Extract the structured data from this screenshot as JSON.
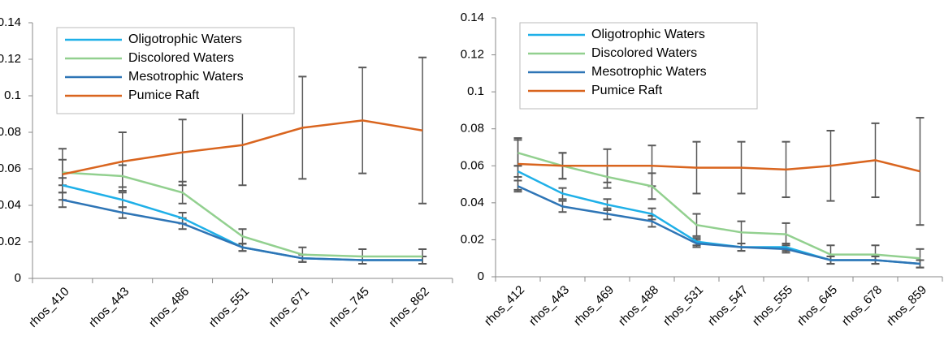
{
  "chart_data": [
    {
      "type": "line",
      "categories": [
        "rhos_410",
        "rhos_443",
        "rhos_486",
        "rhos_551",
        "rhos_671",
        "rhos_745",
        "rhos_862"
      ],
      "ylim": [
        0,
        0.14
      ],
      "yticks": [
        0,
        0.02,
        0.04,
        0.06,
        0.08,
        0.1,
        0.12,
        0.14
      ],
      "grid": false,
      "legend": "top-left",
      "series": [
        {
          "name": "Oligotrophic Waters",
          "color": "#1fb0e8",
          "values": [
            0.051,
            0.043,
            0.033,
            0.017,
            0.011,
            0.01,
            0.01
          ],
          "errors": [
            0.004,
            0.004,
            0.003,
            0.002,
            0.002,
            0.002,
            0.002
          ]
        },
        {
          "name": "Discolored Waters",
          "color": "#92d08f",
          "values": [
            0.058,
            0.056,
            0.047,
            0.023,
            0.013,
            0.012,
            0.012
          ],
          "errors": [
            0.007,
            0.006,
            0.006,
            0.004,
            0.004,
            0.004,
            0.004
          ]
        },
        {
          "name": "Mesotrophic Waters",
          "color": "#2e75b6",
          "values": [
            0.043,
            0.036,
            0.03,
            0.017,
            0.011,
            0.01,
            0.01
          ],
          "errors": [
            0.004,
            0.003,
            0.003,
            0.002,
            0.002,
            0.002,
            0.002
          ]
        },
        {
          "name": "Pumice Raft",
          "color": "#d9651f",
          "values": [
            0.057,
            0.064,
            0.069,
            0.073,
            0.0825,
            0.0865,
            0.081
          ],
          "errors": [
            0.014,
            0.016,
            0.018,
            0.022,
            0.028,
            0.029,
            0.04
          ]
        }
      ]
    },
    {
      "type": "line",
      "categories": [
        "rhos_412",
        "rhos_443",
        "rhos_469",
        "rhos_488",
        "rhos_531",
        "rhos_547",
        "rhos_555",
        "rhos_645",
        "rhos_678",
        "rhos_859"
      ],
      "ylim": [
        0,
        0.14
      ],
      "yticks": [
        0,
        0.02,
        0.04,
        0.06,
        0.08,
        0.1,
        0.12,
        0.14
      ],
      "grid": false,
      "legend": "top-left",
      "series": [
        {
          "name": "Oligotrophic Waters",
          "color": "#1fb0e8",
          "values": [
            0.057,
            0.045,
            0.039,
            0.034,
            0.019,
            0.016,
            0.016,
            0.009,
            0.009,
            0.007
          ],
          "errors": [
            0.003,
            0.003,
            0.003,
            0.003,
            0.002,
            0.002,
            0.002,
            0.002,
            0.002,
            0.002
          ]
        },
        {
          "name": "Discolored Waters",
          "color": "#92d08f",
          "values": [
            0.067,
            0.06,
            0.054,
            0.049,
            0.028,
            0.024,
            0.023,
            0.012,
            0.012,
            0.01
          ],
          "errors": [
            0.007,
            0.007,
            0.006,
            0.007,
            0.006,
            0.006,
            0.006,
            0.005,
            0.005,
            0.005
          ]
        },
        {
          "name": "Mesotrophic Waters",
          "color": "#2e75b6",
          "values": [
            0.049,
            0.038,
            0.034,
            0.03,
            0.018,
            0.016,
            0.015,
            0.009,
            0.009,
            0.007
          ],
          "errors": [
            0.003,
            0.003,
            0.003,
            0.003,
            0.002,
            0.002,
            0.002,
            0.002,
            0.002,
            0.002
          ]
        },
        {
          "name": "Pumice Raft",
          "color": "#d9651f",
          "values": [
            0.061,
            0.06,
            0.06,
            0.06,
            0.059,
            0.059,
            0.058,
            0.06,
            0.063,
            0.057
          ],
          "errors": [
            0.014,
            0.007,
            0.009,
            0.011,
            0.014,
            0.014,
            0.015,
            0.019,
            0.02,
            0.029
          ]
        }
      ]
    }
  ]
}
